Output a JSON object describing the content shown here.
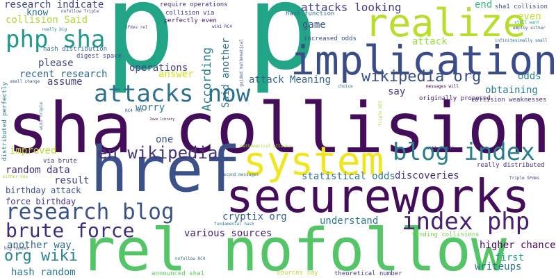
{
  "words": [
    {
      "text": "p p",
      "color": "#21a586",
      "vertical": false
    },
    {
      "text": "sha collision",
      "color": "#440d59",
      "vertical": false
    },
    {
      "text": "href",
      "color": "#3c5089",
      "vertical": false
    },
    {
      "text": "rel nofollow",
      "color": "#53c567",
      "vertical": false
    },
    {
      "text": "secureworks",
      "color": "#440d59",
      "vertical": false
    },
    {
      "text": "system",
      "color": "#f0e51e",
      "vertical": false
    },
    {
      "text": "implication",
      "color": "#3a4d8a",
      "vertical": false
    },
    {
      "text": "realize",
      "color": "#b6de2b",
      "vertical": false
    },
    {
      "text": "php sha",
      "color": "#22978c",
      "vertical": false
    },
    {
      "text": "attacks now",
      "color": "#2c6f8e",
      "vertical": false
    },
    {
      "text": "research blog",
      "color": "#3b518a",
      "vertical": false
    },
    {
      "text": "blog index",
      "color": "#287d8e",
      "vertical": false
    },
    {
      "text": "index php",
      "color": "#482071",
      "vertical": false
    },
    {
      "text": "brute force",
      "color": "#3f2d7b",
      "vertical": false
    },
    {
      "text": "en wikipedia",
      "color": "#46347c",
      "vertical": false
    },
    {
      "text": "wikipedia org",
      "color": "#3a4f8a",
      "vertical": false
    },
    {
      "text": "org wiki",
      "color": "#25848e",
      "vertical": false
    },
    {
      "text": "attacks looking",
      "color": "#433e85",
      "vertical": false
    },
    {
      "text": "research indicate",
      "color": "#3f4889",
      "vertical": false
    },
    {
      "text": "collision Said",
      "color": "#addc30",
      "vertical": false
    },
    {
      "text": "know",
      "color": "#2d708e",
      "vertical": false
    },
    {
      "text": "operations",
      "color": "#414487",
      "vertical": false
    },
    {
      "text": "answer",
      "color": "#d3e21b",
      "vertical": false
    },
    {
      "text": "According",
      "color": "#277f8e",
      "vertical": true
    },
    {
      "text": "Said another",
      "color": "#2e6e8e",
      "vertical": true
    },
    {
      "text": "attack Meaning",
      "color": "#31678e",
      "vertical": false
    },
    {
      "text": "game",
      "color": "#3b528b",
      "vertical": false
    },
    {
      "text": "odds",
      "color": "#277f8e",
      "vertical": false
    },
    {
      "text": "even",
      "color": "#bade28",
      "vertical": false
    },
    {
      "text": "end",
      "color": "#35b779",
      "vertical": false
    },
    {
      "text": "attack",
      "color": "#9bd93c",
      "vertical": false
    },
    {
      "text": "obtaining",
      "color": "#2a788e",
      "vertical": false
    },
    {
      "text": "say",
      "color": "#443b84",
      "vertical": false
    },
    {
      "text": "please",
      "color": "#3e4989",
      "vertical": false
    },
    {
      "text": "recent research",
      "color": "#31688e",
      "vertical": false
    },
    {
      "text": "assume",
      "color": "#433d84",
      "vertical": false
    },
    {
      "text": "worry",
      "color": "#2a768e",
      "vertical": false
    },
    {
      "text": "one",
      "color": "#3a538b",
      "vertical": false
    },
    {
      "text": "improved",
      "color": "#b8de29",
      "vertical": false
    },
    {
      "text": "random data",
      "color": "#46307e",
      "vertical": false
    },
    {
      "text": "result",
      "color": "#414487",
      "vertical": false
    },
    {
      "text": "birthday attack",
      "color": "#3d4e8a",
      "vertical": false
    },
    {
      "text": "force birthday",
      "color": "#443983",
      "vertical": false
    },
    {
      "text": "statistical odds",
      "color": "#2c738e",
      "vertical": false
    },
    {
      "text": "discoveries",
      "color": "#472d7b",
      "vertical": false
    },
    {
      "text": "cryptix org",
      "color": "#355f8d",
      "vertical": false
    },
    {
      "text": "understand",
      "color": "#2a788e",
      "vertical": false
    },
    {
      "text": "various sources",
      "color": "#482071",
      "vertical": false
    },
    {
      "text": "another way",
      "color": "#31688e",
      "vertical": false
    },
    {
      "text": "hash random",
      "color": "#2a788e",
      "vertical": false
    },
    {
      "text": "higher chance",
      "color": "#440154",
      "vertical": false
    },
    {
      "text": "first",
      "color": "#20a386",
      "vertical": false
    },
    {
      "text": "writeups",
      "color": "#2a788e",
      "vertical": false
    },
    {
      "text": "really distributed",
      "color": "#46327e",
      "vertical": false
    },
    {
      "text": "originally proposed",
      "color": "#481b6d",
      "vertical": false
    },
    {
      "text": "collision weaknesses",
      "color": "#46307e",
      "vertical": false
    },
    {
      "text": "increased odds",
      "color": "#3b528b",
      "vertical": false
    },
    {
      "text": "hash function",
      "color": "#2d718e",
      "vertical": false
    },
    {
      "text": "sha1 collision",
      "color": "#3b528b",
      "vertical": false
    },
    {
      "text": "collision via",
      "color": "#443983",
      "vertical": false
    },
    {
      "text": "perfectly even",
      "color": "#481769",
      "vertical": false
    },
    {
      "text": "require operations",
      "color": "#472d7b",
      "vertical": false
    },
    {
      "text": "wiki RC4",
      "color": "#453781",
      "vertical": false
    },
    {
      "text": "hash distribution",
      "color": "#2c728e",
      "vertical": false
    },
    {
      "text": "digest space",
      "color": "#3e4989",
      "vertical": false
    },
    {
      "text": "small change",
      "color": "#355f8d",
      "vertical": false
    },
    {
      "text": "via brute",
      "color": "#443a83",
      "vertical": false
    },
    {
      "text": "distributed perfectly",
      "color": "#2a788e",
      "vertical": true
    },
    {
      "text": "guided mathematical",
      "color": "#3b528b",
      "vertical": true
    },
    {
      "text": "mathematical attacks",
      "color": "#a8db34",
      "vertical": false
    },
    {
      "text": "fundamental hash",
      "color": "#2a788e",
      "vertical": false
    },
    {
      "text": "finding collisions",
      "color": "#7ad151",
      "vertical": false
    },
    {
      "text": "announced sha1",
      "color": "#5ec962",
      "vertical": false
    },
    {
      "text": "nofollow RC4",
      "color": "#31688e",
      "vertical": false
    },
    {
      "text": "sources say",
      "color": "#b2dd2d",
      "vertical": false
    },
    {
      "text": "theoretical number",
      "color": "#443983",
      "vertical": false
    },
    {
      "text": "second messages",
      "color": "#2c728e",
      "vertical": false
    },
    {
      "text": "will result",
      "color": "#3b528b",
      "vertical": false
    },
    {
      "text": "Triple SFdes",
      "color": "#46327e",
      "vertical": false
    },
    {
      "text": "big number",
      "color": "#414487",
      "vertical": false
    },
    {
      "text": "either one",
      "color": "#a0da39",
      "vertical": false
    },
    {
      "text": "nofollow Triple",
      "color": "#433e85",
      "vertical": false
    },
    {
      "text": "really big",
      "color": "#2a788e",
      "vertical": false
    },
    {
      "text": "SFdes rel",
      "color": "#3e4a89",
      "vertical": false
    },
    {
      "text": "RC4 rel",
      "color": "#3b528b",
      "vertical": false
    },
    {
      "text": "Java library",
      "color": "#440154",
      "vertical": false
    },
    {
      "text": "still want",
      "color": "#20a386",
      "vertical": false
    },
    {
      "text": "employ either",
      "color": "#3b528b",
      "vertical": false
    },
    {
      "text": "infinitesimally small",
      "color": "#31688e",
      "vertical": false
    },
    {
      "text": "messages will",
      "color": "#440154",
      "vertical": false
    },
    {
      "text": "choice",
      "color": "#2a788e",
      "vertical": false
    },
    {
      "text": "wiki Triple",
      "color": "#31688e",
      "vertical": true
    },
    {
      "text": "Triple DES",
      "color": "#a0da39",
      "vertical": true
    }
  ]
}
